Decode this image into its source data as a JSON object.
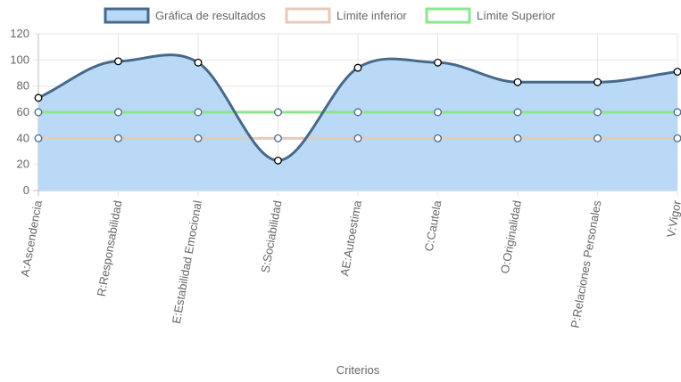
{
  "chart_data": {
    "type": "line",
    "categories": [
      "A:Ascendencia",
      "R:Responsabilidad",
      "E:Estabilidad Emocional",
      "S:Sociabilidad",
      "AE:Autoestima",
      "C:Cautela",
      "O:Originalidad",
      "P:Relaciones Personales",
      "V:Vigor"
    ],
    "series": [
      {
        "name": "Gráfica de resultados",
        "values": [
          71,
          99,
          98,
          23,
          94,
          98,
          83,
          83,
          91
        ],
        "line_color": "#46698a",
        "fill_color": "#b9d9f7",
        "fill": true
      },
      {
        "name": "Límite inferior",
        "values": [
          40,
          40,
          40,
          40,
          40,
          40,
          40,
          40,
          40
        ],
        "line_color": "#e5c9bb",
        "fill": false
      },
      {
        "name": "Límite Superior",
        "values": [
          60,
          60,
          60,
          60,
          60,
          60,
          60,
          60,
          60
        ],
        "line_color": "#8ee58d",
        "fill": false
      }
    ],
    "xlabel": "Criterios",
    "ylabel": "",
    "ylim": [
      0,
      120
    ],
    "yticks": [
      0,
      20,
      40,
      60,
      80,
      100,
      120
    ],
    "grid": true,
    "legend_position": "top-center",
    "smooth": true
  }
}
